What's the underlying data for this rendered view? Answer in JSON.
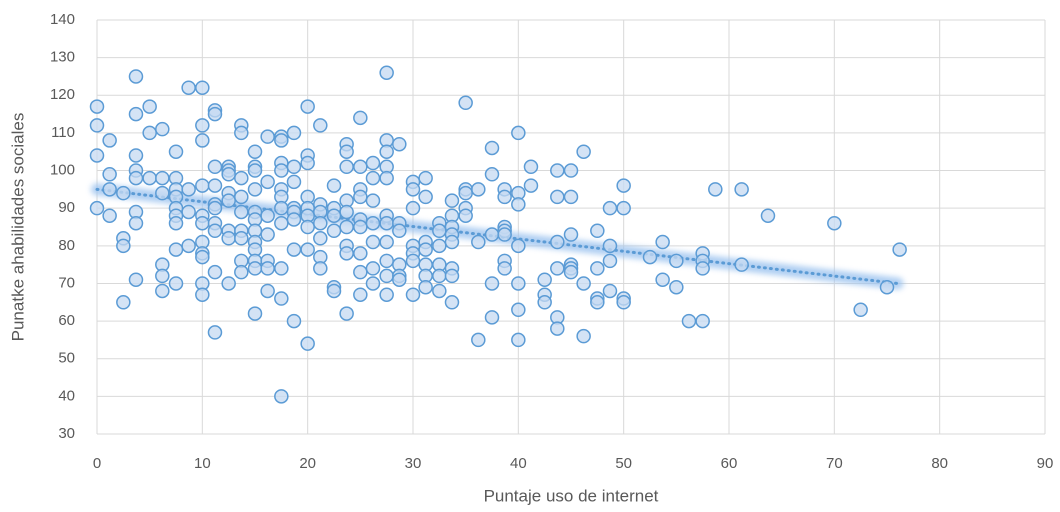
{
  "chart_data": {
    "type": "scatter",
    "x_label": "Puntaje uso de internet",
    "y_label": "Punatke ahabilidades sociales",
    "color": "#5b9bd5",
    "fill": "#c5d9f1",
    "grid": true,
    "xlim": [
      0,
      90
    ],
    "xticks": [
      0,
      10,
      20,
      30,
      40,
      50,
      60,
      70,
      80,
      90
    ],
    "ylim": [
      30,
      140
    ],
    "yticks": [
      30,
      40,
      50,
      60,
      70,
      80,
      90,
      100,
      110,
      120,
      130,
      140
    ],
    "trendline": {
      "x": [
        0,
        76
      ],
      "values": [
        95,
        70
      ]
    },
    "x": [
      0,
      0,
      0,
      0,
      1.2,
      1.2,
      1.2,
      1.2,
      2.5,
      2.5,
      2.5,
      2.5,
      3.7,
      3.7,
      3.7,
      3.7,
      3.7,
      3.7,
      3.7,
      3.7,
      5,
      5,
      5,
      6.2,
      6.2,
      6.2,
      6.2,
      6.2,
      6.2,
      7.5,
      7.5,
      7.5,
      7.5,
      7.5,
      7.5,
      7.5,
      7.5,
      7.5,
      8.7,
      8.7,
      8.7,
      8.7,
      10,
      10,
      10,
      10,
      10,
      10,
      10,
      10,
      10,
      10,
      10,
      11.2,
      11.2,
      11.2,
      11.2,
      11.2,
      11.2,
      11.2,
      11.2,
      11.2,
      11.2,
      12.5,
      12.5,
      12.5,
      12.5,
      12.5,
      12.5,
      12.5,
      12.5,
      13.7,
      13.7,
      13.7,
      13.7,
      13.7,
      13.7,
      13.7,
      13.7,
      13.7,
      15,
      15,
      15,
      15,
      15,
      15,
      15,
      15,
      15,
      15,
      15,
      15,
      16.2,
      16.2,
      16.2,
      16.2,
      16.2,
      16.2,
      16.2,
      17.5,
      17.5,
      17.5,
      17.5,
      17.5,
      17.5,
      17.5,
      17.5,
      17.5,
      17.5,
      17.5,
      18.7,
      18.7,
      18.7,
      18.7,
      18.7,
      18.7,
      18.7,
      18.7,
      20,
      20,
      20,
      20,
      20,
      20,
      20,
      20,
      20,
      21.2,
      21.2,
      21.2,
      21.2,
      21.2,
      21.2,
      21.2,
      22.5,
      22.5,
      22.5,
      22.5,
      22.5,
      22.5,
      23.7,
      23.7,
      23.7,
      23.7,
      23.7,
      23.7,
      23.7,
      23.7,
      23.7,
      25,
      25,
      25,
      25,
      25,
      25,
      25,
      25,
      25,
      26.2,
      26.2,
      26.2,
      26.2,
      26.2,
      26.2,
      26.2,
      27.5,
      27.5,
      27.5,
      27.5,
      27.5,
      27.5,
      27.5,
      27.5,
      27.5,
      27.5,
      27.5,
      28.7,
      28.7,
      28.7,
      28.7,
      28.7,
      28.7,
      30,
      30,
      30,
      30,
      30,
      30,
      30,
      31.2,
      31.2,
      31.2,
      31.2,
      31.2,
      31.2,
      31.2,
      32.5,
      32.5,
      32.5,
      32.5,
      32.5,
      32.5,
      33.7,
      33.7,
      33.7,
      33.7,
      33.7,
      33.7,
      33.7,
      33.7,
      35,
      35,
      35,
      35,
      35,
      36.2,
      36.2,
      36.2,
      37.5,
      37.5,
      37.5,
      37.5,
      37.5,
      38.7,
      38.7,
      38.7,
      38.7,
      38.7,
      38.7,
      38.7,
      40,
      40,
      40,
      40,
      40,
      40,
      40,
      41.2,
      41.2,
      42.5,
      42.5,
      42.5,
      43.7,
      43.7,
      43.7,
      43.7,
      43.7,
      43.7,
      45,
      45,
      45,
      45,
      45,
      45,
      46.2,
      46.2,
      46.2,
      47.5,
      47.5,
      47.5,
      47.5,
      48.7,
      48.7,
      48.7,
      48.7,
      50,
      50,
      50,
      50,
      52.5,
      53.7,
      53.7,
      55,
      55,
      56.2,
      57.5,
      57.5,
      57.5,
      57.5,
      58.7,
      61.2,
      61.2,
      63.7,
      70,
      72.5,
      75,
      76.2
    ],
    "values": [
      117,
      112,
      104,
      90,
      108,
      99,
      95,
      88,
      94,
      82,
      80,
      65,
      125,
      115,
      104,
      100,
      98,
      89,
      86,
      71,
      117,
      110,
      98,
      111,
      98,
      94,
      75,
      72,
      68,
      105,
      98,
      95,
      93,
      90,
      88,
      86,
      79,
      70,
      122,
      95,
      89,
      80,
      122,
      112,
      108,
      96,
      88,
      86,
      81,
      78,
      77,
      70,
      67,
      116,
      115,
      101,
      96,
      91,
      90,
      86,
      84,
      73,
      57,
      101,
      100,
      99,
      94,
      92,
      84,
      82,
      70,
      112,
      110,
      98,
      93,
      89,
      84,
      82,
      76,
      73,
      105,
      101,
      100,
      95,
      89,
      87,
      84,
      81,
      79,
      76,
      74,
      62,
      109,
      97,
      88,
      83,
      76,
      74,
      68,
      109,
      108,
      102,
      100,
      95,
      93,
      90,
      86,
      74,
      66,
      40,
      110,
      101,
      97,
      90,
      89,
      87,
      79,
      60,
      117,
      104,
      102,
      93,
      90,
      88,
      85,
      79,
      54,
      112,
      91,
      89,
      86,
      82,
      77,
      74,
      96,
      90,
      88,
      84,
      69,
      68,
      107,
      105,
      101,
      92,
      89,
      85,
      80,
      78,
      62,
      114,
      101,
      95,
      93,
      87,
      85,
      78,
      73,
      67,
      102,
      98,
      92,
      86,
      81,
      74,
      70,
      126,
      108,
      105,
      101,
      98,
      88,
      86,
      81,
      76,
      72,
      67,
      107,
      86,
      84,
      75,
      72,
      71,
      97,
      95,
      90,
      80,
      78,
      76,
      67,
      98,
      93,
      81,
      79,
      75,
      72,
      69,
      86,
      84,
      80,
      75,
      72,
      68,
      92,
      88,
      85,
      83,
      81,
      74,
      72,
      65,
      118,
      95,
      94,
      90,
      88,
      95,
      81,
      55,
      106,
      99,
      83,
      70,
      61,
      95,
      93,
      85,
      84,
      83,
      76,
      74,
      110,
      94,
      91,
      80,
      70,
      63,
      55,
      101,
      96,
      71,
      67,
      65,
      100,
      93,
      81,
      74,
      61,
      58,
      100,
      93,
      83,
      75,
      74,
      73,
      105,
      70,
      56,
      84,
      74,
      66,
      65,
      90,
      80,
      76,
      68,
      96,
      90,
      66,
      65,
      77,
      81,
      71,
      76,
      69,
      60,
      78,
      76,
      74,
      60,
      95,
      95,
      75,
      88,
      86,
      63,
      69,
      79
    ]
  }
}
